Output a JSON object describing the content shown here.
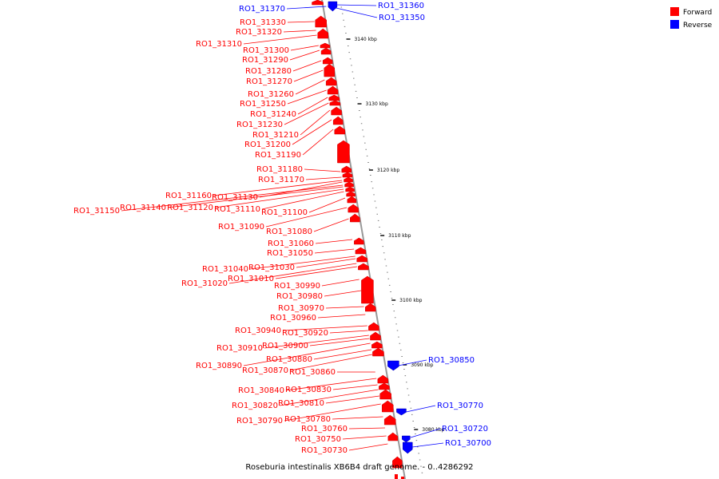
{
  "caption": "Roseburia intestinalis XB6B4 draft genome. - 0..4286292",
  "legend": [
    {
      "label": "Forward",
      "color": "#ff0000"
    },
    {
      "label": "Reverse",
      "color": "#0000ff"
    }
  ],
  "colors": {
    "forward": "#ff0000",
    "reverse": "#0000ff",
    "backbone": "#999999"
  },
  "ticks": [
    "3140 kbp",
    "3130 kbp",
    "3120 kbp",
    "3110 kbp",
    "3100 kbp",
    "3090 kbp",
    "3080 kbp"
  ],
  "genes_forward": [
    "RO1_31330",
    "RO1_31320",
    "RO1_31310",
    "RO1_31300",
    "RO1_31290",
    "RO1_31280",
    "RO1_31270",
    "RO1_31260",
    "RO1_31250",
    "RO1_31240",
    "RO1_31230",
    "RO1_31210",
    "RO1_31200",
    "RO1_31190",
    "RO1_31180",
    "RO1_31170",
    "RO1_31160",
    "RO1_31130",
    "RO1_31150",
    "RO1_31140",
    "RO1_31120",
    "RO1_31110",
    "RO1_31100",
    "RO1_31090",
    "RO1_31080",
    "RO1_31060",
    "RO1_31050",
    "RO1_31040",
    "RO1_31030",
    "RO1_31020",
    "RO1_31010",
    "RO1_30990",
    "RO1_30980",
    "RO1_30970",
    "RO1_30960",
    "RO1_30940",
    "RO1_30920",
    "RO1_30910",
    "RO1_30900",
    "RO1_30890",
    "RO1_30880",
    "RO1_30870",
    "RO1_30860",
    "RO1_30840",
    "RO1_30830",
    "RO1_30820",
    "RO1_30810",
    "RO1_30790",
    "RO1_30780",
    "RO1_30760",
    "RO1_30750",
    "RO1_30730"
  ],
  "genes_reverse": [
    "RO1_31370",
    "RO1_31360",
    "RO1_31350",
    "RO1_30850",
    "RO1_30770",
    "RO1_30720",
    "RO1_30700"
  ]
}
